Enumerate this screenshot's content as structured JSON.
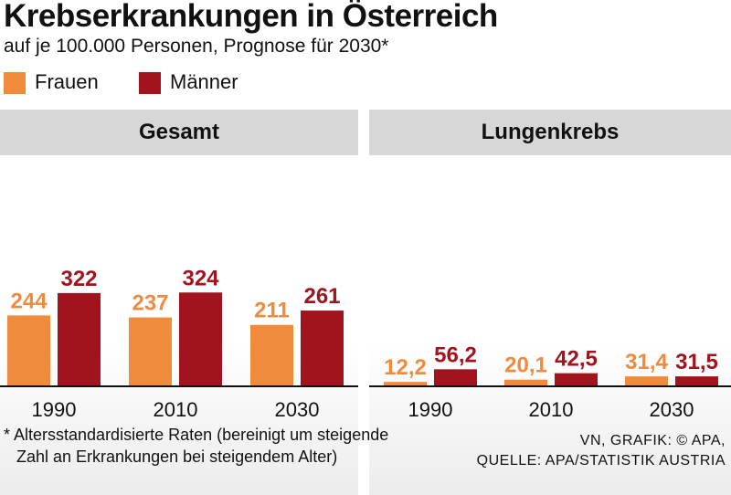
{
  "title": "Krebserkrankungen in Österreich",
  "subtitle": "auf je 100.000 Personen, Prognose für 2030*",
  "legend": [
    {
      "label": "Frauen",
      "color": "#f08a3c"
    },
    {
      "label": "Männer",
      "color": "#a1141e"
    }
  ],
  "chart_data": [
    {
      "type": "bar",
      "title": "Gesamt",
      "categories": [
        "1990",
        "2010",
        "2030"
      ],
      "series": [
        {
          "name": "Frauen",
          "values": [
            244,
            237,
            211
          ],
          "labels": [
            "244",
            "237",
            "211"
          ]
        },
        {
          "name": "Männer",
          "values": [
            322,
            324,
            261
          ],
          "labels": [
            "322",
            "324",
            "261"
          ]
        }
      ],
      "ylim": [
        0,
        330
      ]
    },
    {
      "type": "bar",
      "title": "Lungenkrebs",
      "categories": [
        "1990",
        "2010",
        "2030"
      ],
      "series": [
        {
          "name": "Frauen",
          "values": [
            12.2,
            20.1,
            31.4
          ],
          "labels": [
            "12,2",
            "20,1",
            "31,4"
          ]
        },
        {
          "name": "Männer",
          "values": [
            56.2,
            42.5,
            31.5
          ],
          "labels": [
            "56,2",
            "42,5",
            "31,5"
          ]
        }
      ],
      "ylim": [
        0,
        330
      ]
    }
  ],
  "footnote": {
    "line1": "* Altersstandardisierte Raten (bereinigt um steigende",
    "line2": "Zahl an Erkrankungen bei steigendem Alter)"
  },
  "credit": {
    "line1": "VN, GRAFIK: © APA,",
    "line2": "QUELLE: APA/STATISTIK AUSTRIA"
  }
}
